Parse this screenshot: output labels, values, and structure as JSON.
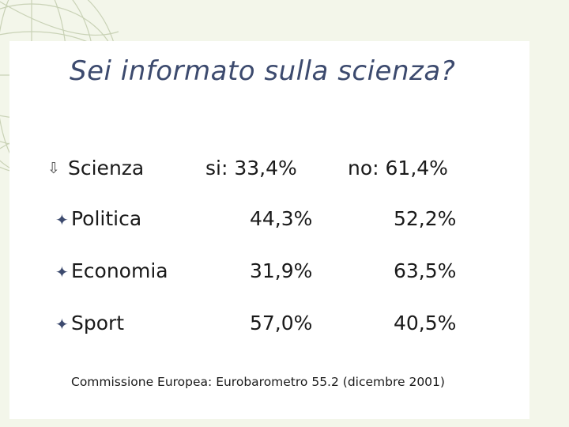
{
  "slide": {
    "title": "Sei informato sulla scienza?",
    "source": "Commissione Europea: Eurobarometro 55.2 (dicembre 2001)"
  },
  "header_row": {
    "bullet_icon": "down-arrow-icon",
    "label": "Scienza",
    "si": "si: 33,4%",
    "no": "no: 61,4%"
  },
  "rows": [
    {
      "bullet_icon": "four-point-star-icon",
      "label": "Politica",
      "si": "44,3%",
      "no": "52,2%"
    },
    {
      "bullet_icon": "four-point-star-icon",
      "label": "Economia",
      "si": "31,9%",
      "no": "63,5%"
    },
    {
      "bullet_icon": "four-point-star-icon",
      "label": "Sport",
      "si": "57,0%",
      "no": "40,5%"
    }
  ],
  "colors": {
    "background": "#f3f6ea",
    "title": "#3c4a6e",
    "text": "#1a1a1a"
  }
}
